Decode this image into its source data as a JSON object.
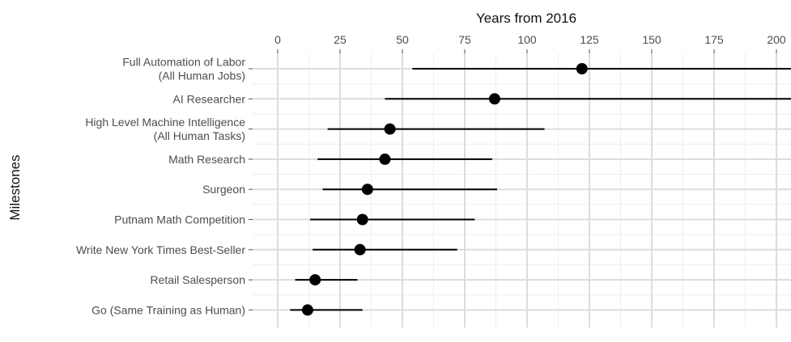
{
  "chart_data": {
    "type": "scatter",
    "subtype": "point-range",
    "title": "",
    "xlabel": "Years from 2016",
    "ylabel": "Milestones",
    "x_axis_position": "top",
    "xlim": [
      -10,
      205
    ],
    "x_ticks": [
      0,
      25,
      50,
      75,
      100,
      125,
      150,
      175,
      200
    ],
    "grid": true,
    "legend": "none",
    "colors": {
      "point": "#000000",
      "line": "#000000",
      "grid_major": "#dcdcdc",
      "grid_minor": "#eeeeee",
      "text": "#4d4d4d",
      "title": "#111111",
      "panel": "#ffffff"
    },
    "categories": [
      [
        "Full Automation of Labor",
        "(All Human Jobs)"
      ],
      [
        "AI Researcher"
      ],
      [
        "High Level Machine Intelligence",
        "(All Human Tasks)"
      ],
      [
        "Math Research"
      ],
      [
        "Surgeon"
      ],
      [
        "Putnam Math Competition"
      ],
      [
        "Write New York Times Best-Seller"
      ],
      [
        "Retail Salesperson"
      ],
      [
        "Go (Same Training as Human)"
      ]
    ],
    "series": [
      {
        "values": [
          122,
          87,
          45,
          43,
          36,
          34,
          33,
          15,
          12
        ],
        "lower": [
          54,
          43,
          20,
          16,
          18,
          13,
          14,
          7,
          5
        ],
        "upper": [
          250,
          250,
          107,
          86,
          88,
          79,
          72,
          32,
          34
        ]
      }
    ]
  }
}
